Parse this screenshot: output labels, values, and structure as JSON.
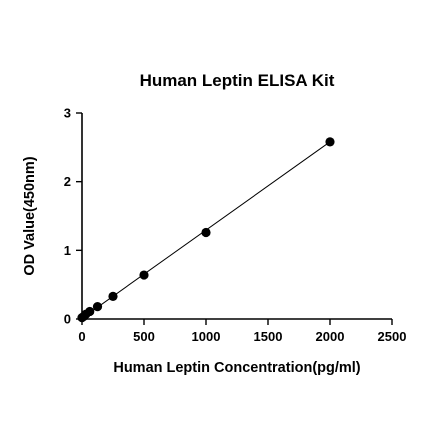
{
  "chart_data": {
    "type": "scatter",
    "title": "Human Leptin ELISA Kit",
    "xlabel": "Human Leptin Concentration(pg/ml)",
    "ylabel": "OD Value(450nm)",
    "xlim": [
      0,
      2500
    ],
    "ylim": [
      0,
      3
    ],
    "xticks": [
      0,
      500,
      1000,
      1500,
      2000,
      2500
    ],
    "yticks": [
      0,
      1,
      2,
      3
    ],
    "grid": false,
    "legend": "none",
    "series": [
      {
        "x": [
          0,
          15.6,
          31.25,
          62.5,
          125,
          250,
          500,
          1000,
          2000
        ],
        "y": [
          0.02,
          0.04,
          0.07,
          0.11,
          0.18,
          0.33,
          0.64,
          1.26,
          2.58
        ],
        "color": "#000000",
        "marker": "circle",
        "fit_line": true
      }
    ],
    "fit_line_range": [
      0,
      2000
    ],
    "fit_line_y": [
      0.01,
      2.58
    ]
  }
}
